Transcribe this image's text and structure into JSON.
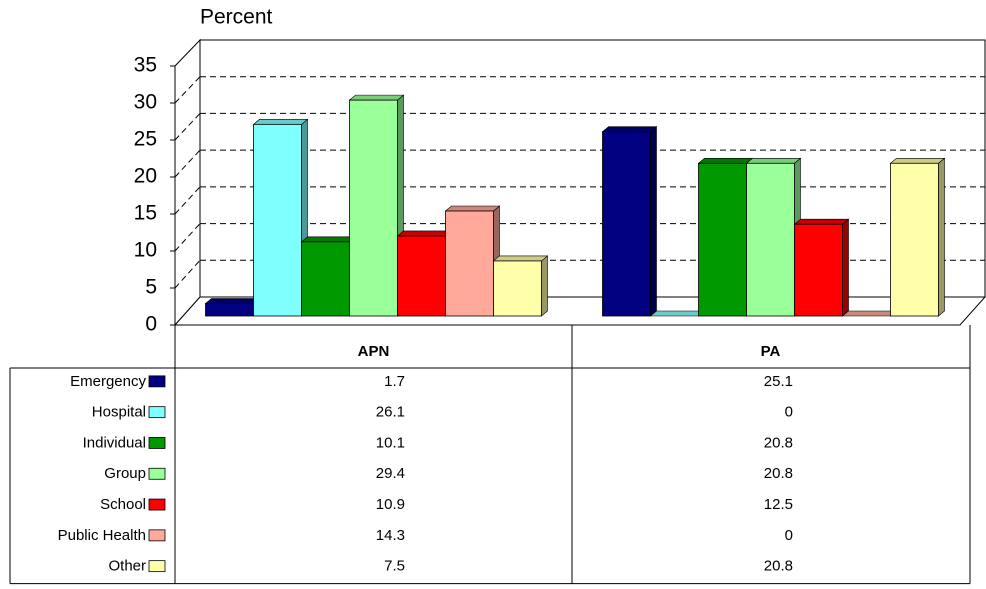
{
  "chart_data": {
    "type": "bar",
    "ylabel": "Percent",
    "categories": [
      "APN",
      "PA"
    ],
    "series": [
      {
        "name": "Emergency",
        "color": "#000080",
        "values": [
          1.7,
          25.1
        ]
      },
      {
        "name": "Hospital",
        "color": "#80ffff",
        "values": [
          26.1,
          0
        ]
      },
      {
        "name": "Individual",
        "color": "#009900",
        "values": [
          10.1,
          20.8
        ]
      },
      {
        "name": "Group",
        "color": "#99ff99",
        "values": [
          29.4,
          20.8
        ]
      },
      {
        "name": "School",
        "color": "#ff0000",
        "values": [
          10.9,
          12.5
        ]
      },
      {
        "name": "Public Health",
        "color": "#ffa99a",
        "values": [
          14.3,
          0
        ]
      },
      {
        "name": "Other",
        "color": "#ffffaa",
        "values": [
          7.5,
          20.8
        ]
      }
    ],
    "ylim": [
      0,
      35
    ],
    "yticks": [
      0,
      5,
      10,
      15,
      20,
      25,
      30,
      35
    ],
    "grid": true
  }
}
